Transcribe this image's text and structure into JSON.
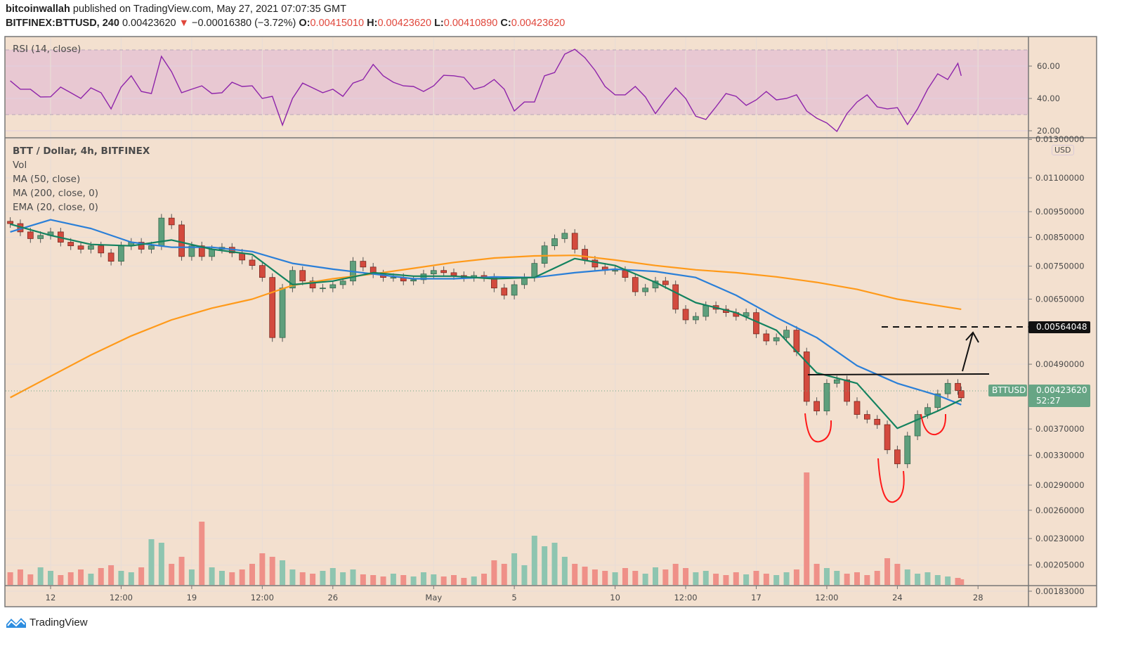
{
  "header": {
    "author": "bitcoinwallah",
    "published": "published on TradingView.com, May 27, 2021 07:07:35 GMT",
    "symbol": "BITFINEX:BTTUSD, 240",
    "last": "0.00423620",
    "change": "−0.00016380 (−3.72%)",
    "direction_icon": "triangle-down-icon",
    "o_label": "O:",
    "o": "0.00415010",
    "h_label": "H:",
    "h": "0.00423620",
    "l_label": "L:",
    "l": "0.00410890",
    "c_label": "C:",
    "c": "0.00423620"
  },
  "legend": {
    "rsi": "RSI (14, close)",
    "title": "BTT / Dollar, 4h, BITFINEX",
    "vol": "Vol",
    "ma50": "MA (50, close)",
    "ma200": "MA (200, close, 0)",
    "ema20": "EMA (20, close, 0)"
  },
  "price_axis": {
    "currency": "USD",
    "ticks": [
      "0.01300000",
      "0.01100000",
      "0.00950000",
      "0.00850000",
      "0.00750000",
      "0.00650000",
      "0.00490000",
      "0.00370000",
      "0.00330000",
      "0.00290000",
      "0.00260000",
      "0.00230000",
      "0.00205000",
      "0.00183000"
    ],
    "last_price_symbol": "BTTUSD",
    "last_price": "0.00423620",
    "countdown": "52:27",
    "target_label": "0.00564048"
  },
  "rsi_axis": {
    "ticks": [
      "20.00",
      "40.00",
      "60.00"
    ]
  },
  "time_axis": {
    "ticks": [
      {
        "label": "12",
        "date": "2021-04-12 00:00"
      },
      {
        "label": "12:00",
        "date": "2021-04-15 12:00"
      },
      {
        "label": "19",
        "date": "2021-04-19 00:00"
      },
      {
        "label": "12:00",
        "date": "2021-04-22 12:00"
      },
      {
        "label": "26",
        "date": "2021-04-26 00:00"
      },
      {
        "label": "May",
        "date": "2021-05-01 00:00"
      },
      {
        "label": "5",
        "date": "2021-05-05 00:00"
      },
      {
        "label": "10",
        "date": "2021-05-10 00:00"
      },
      {
        "label": "12:00",
        "date": "2021-05-13 12:00"
      },
      {
        "label": "17",
        "date": "2021-05-17 00:00"
      },
      {
        "label": "12:00",
        "date": "2021-05-20 12:00"
      },
      {
        "label": "24",
        "date": "2021-05-24 00:00"
      },
      {
        "label": "28",
        "date": "2021-05-28 00:00"
      }
    ]
  },
  "colors": {
    "background": "#f3e0cf",
    "up": "#5e9f7c",
    "down": "#d34a3e",
    "vol_up": "#8ec5b0",
    "vol_down": "#ef9088",
    "ma50": "#2a7fd8",
    "ma200": "#ff9a1a",
    "ema20": "#13825f",
    "rsi": "#8e24aa",
    "rsi_band": "#e8c8d2",
    "last_price": "#67a585",
    "annotation_pattern": "#ff1a1a"
  },
  "annotations": {
    "pattern": "inverse head and shoulders",
    "target_price": 0.00564048,
    "neckline_price": 0.00468
  },
  "chart_data": {
    "type": "candlestick",
    "price_scale": "log",
    "ylim": [
      0.00178,
      0.0131
    ],
    "grid": true,
    "candles_close": [
      [
        "2021-04-10 00:00",
        0.00902
      ],
      [
        "2021-04-10 12:00",
        0.0087
      ],
      [
        "2021-04-11 00:00",
        0.00845
      ],
      [
        "2021-04-11 12:00",
        0.00857
      ],
      [
        "2021-04-12 00:00",
        0.0087
      ],
      [
        "2021-04-12 12:00",
        0.00832
      ],
      [
        "2021-04-13 00:00",
        0.00819
      ],
      [
        "2021-04-13 12:00",
        0.00807
      ],
      [
        "2021-04-14 00:00",
        0.00819
      ],
      [
        "2021-04-14 12:00",
        0.00794
      ],
      [
        "2021-04-15 00:00",
        0.00766
      ],
      [
        "2021-04-15 12:00",
        0.00819
      ],
      [
        "2021-04-16 00:00",
        0.00832
      ],
      [
        "2021-04-16 12:00",
        0.00807
      ],
      [
        "2021-04-17 00:00",
        0.00819
      ],
      [
        "2021-04-17 12:00",
        0.00924
      ],
      [
        "2021-04-18 00:00",
        0.00897
      ],
      [
        "2021-04-18 12:00",
        0.00782
      ],
      [
        "2021-04-19 00:00",
        0.00819
      ],
      [
        "2021-04-19 12:00",
        0.00782
      ],
      [
        "2021-04-20 00:00",
        0.00807
      ],
      [
        "2021-04-20 12:00",
        0.00814
      ],
      [
        "2021-04-21 00:00",
        0.00794
      ],
      [
        "2021-04-21 12:00",
        0.0077
      ],
      [
        "2021-04-22 00:00",
        0.00752
      ],
      [
        "2021-04-22 12:00",
        0.00714
      ],
      [
        "2021-04-23 00:00",
        0.0055
      ],
      [
        "2021-04-23 12:00",
        0.00682
      ],
      [
        "2021-04-24 00:00",
        0.00736
      ],
      [
        "2021-04-24 12:00",
        0.00703
      ],
      [
        "2021-04-25 00:00",
        0.00682
      ],
      [
        "2021-04-25 12:00",
        0.00682
      ],
      [
        "2021-04-26 00:00",
        0.00692
      ],
      [
        "2021-04-26 12:00",
        0.00703
      ],
      [
        "2021-04-27 00:00",
        0.00766
      ],
      [
        "2021-04-27 12:00",
        0.00747
      ],
      [
        "2021-04-28 00:00",
        0.00725
      ],
      [
        "2021-04-28 12:00",
        0.00714
      ],
      [
        "2021-04-29 00:00",
        0.00714
      ],
      [
        "2021-04-29 12:00",
        0.00703
      ],
      [
        "2021-04-30 00:00",
        0.00707
      ],
      [
        "2021-04-30 12:00",
        0.00725
      ],
      [
        "2021-05-01 00:00",
        0.00736
      ],
      [
        "2021-05-01 12:00",
        0.00729
      ],
      [
        "2021-05-02 00:00",
        0.0072
      ],
      [
        "2021-05-02 12:00",
        0.00714
      ],
      [
        "2021-05-03 00:00",
        0.0072
      ],
      [
        "2021-05-03 12:00",
        0.00714
      ],
      [
        "2021-05-04 00:00",
        0.00682
      ],
      [
        "2021-05-04 12:00",
        0.00661
      ],
      [
        "2021-05-05 00:00",
        0.00692
      ],
      [
        "2021-05-05 12:00",
        0.00714
      ],
      [
        "2021-05-06 00:00",
        0.00759
      ],
      [
        "2021-05-06 12:00",
        0.00819
      ],
      [
        "2021-05-07 00:00",
        0.00845
      ],
      [
        "2021-05-07 12:00",
        0.00865
      ],
      [
        "2021-05-08 00:00",
        0.00807
      ],
      [
        "2021-05-08 12:00",
        0.0077
      ],
      [
        "2021-05-09 00:00",
        0.00747
      ],
      [
        "2021-05-09 12:00",
        0.00736
      ],
      [
        "2021-05-10 00:00",
        0.00736
      ],
      [
        "2021-05-10 12:00",
        0.00714
      ],
      [
        "2021-05-11 00:00",
        0.00671
      ],
      [
        "2021-05-11 12:00",
        0.00682
      ],
      [
        "2021-05-12 00:00",
        0.00703
      ],
      [
        "2021-05-12 12:00",
        0.00692
      ],
      [
        "2021-05-13 00:00",
        0.00622
      ],
      [
        "2021-05-13 12:00",
        0.00594
      ],
      [
        "2021-05-14 00:00",
        0.00603
      ],
      [
        "2021-05-14 12:00",
        0.00632
      ],
      [
        "2021-05-15 00:00",
        0.00622
      ],
      [
        "2021-05-15 12:00",
        0.00613
      ],
      [
        "2021-05-16 00:00",
        0.00603
      ],
      [
        "2021-05-16 12:00",
        0.00613
      ],
      [
        "2021-05-17 00:00",
        0.00559
      ],
      [
        "2021-05-17 12:00",
        0.00542
      ],
      [
        "2021-05-18 00:00",
        0.0055
      ],
      [
        "2021-05-18 12:00",
        0.00568
      ],
      [
        "2021-05-19 00:00",
        0.00517
      ],
      [
        "2021-05-19 12:00",
        0.00417
      ],
      [
        "2021-05-20 00:00",
        0.004
      ],
      [
        "2021-05-20 12:00",
        0.00451
      ],
      [
        "2021-05-21 00:00",
        0.00458
      ],
      [
        "2021-05-21 12:00",
        0.00417
      ],
      [
        "2021-05-22 00:00",
        0.00394
      ],
      [
        "2021-05-22 12:00",
        0.00386
      ],
      [
        "2021-05-23 00:00",
        0.00377
      ],
      [
        "2021-05-23 12:00",
        0.00338
      ],
      [
        "2021-05-24 00:00",
        0.00318
      ],
      [
        "2021-05-24 12:00",
        0.00359
      ],
      [
        "2021-05-25 00:00",
        0.00394
      ],
      [
        "2021-05-25 12:00",
        0.00406
      ],
      [
        "2021-05-26 00:00",
        0.00431
      ],
      [
        "2021-05-26 12:00",
        0.00451
      ],
      [
        "2021-05-27 00:00",
        0.00437
      ],
      [
        "2021-05-27 04:00",
        0.0042362
      ]
    ],
    "volume_relative": [
      18,
      22,
      15,
      25,
      20,
      14,
      18,
      22,
      16,
      24,
      28,
      20,
      18,
      25,
      65,
      60,
      30,
      40,
      22,
      90,
      25,
      20,
      18,
      22,
      30,
      45,
      40,
      35,
      22,
      18,
      16,
      20,
      24,
      18,
      22,
      15,
      14,
      12,
      16,
      14,
      12,
      18,
      15,
      12,
      14,
      10,
      12,
      16,
      35,
      30,
      45,
      28,
      70,
      55,
      60,
      40,
      30,
      26,
      22,
      20,
      18,
      24,
      20,
      16,
      25,
      22,
      30,
      24,
      18,
      20,
      16,
      14,
      18,
      15,
      20,
      16,
      14,
      18,
      22,
      160,
      30,
      24,
      20,
      16,
      18,
      14,
      20,
      38,
      30,
      22,
      16,
      18,
      14,
      12,
      10,
      8
    ],
    "rsi": [
      50.9,
      45.7,
      45.7,
      40.9,
      41,
      47,
      43.5,
      40,
      46.5,
      43.5,
      33.5,
      47,
      54,
      44.3,
      43,
      66,
      56.5,
      43.5,
      45.7,
      47.8,
      43,
      43.5,
      50,
      47.4,
      47.8,
      40,
      41.3,
      23.5,
      40,
      49.5,
      46.5,
      43.5,
      45.7,
      41.3,
      49.5,
      51.7,
      61,
      54,
      50,
      47.8,
      47.4,
      44.3,
      47.8,
      54.3,
      54,
      53,
      45.7,
      47.4,
      51.7,
      45.7,
      32.2,
      37.8,
      37.8,
      54,
      56,
      67.4,
      70.4,
      65.2,
      57.4,
      47.4,
      42.2,
      42.2,
      47.4,
      41,
      30.6,
      39.1,
      46.5,
      40,
      29,
      27,
      34.8,
      43,
      41.3,
      35.7,
      39.1,
      44.3,
      39.1,
      40,
      42.2,
      32.2,
      27.8,
      24.8,
      19.6,
      30.6,
      37.8,
      42.2,
      34.8,
      33.5,
      34.3,
      23.9,
      33.5,
      45.7,
      55.2,
      51.7,
      61.7,
      54
    ],
    "rsi_levels": {
      "upper": 70,
      "lower": 30
    },
    "ma50": [
      [
        "2021-04-10 00:00",
        0.0087
      ],
      [
        "2021-04-12 00:00",
        0.00917
      ],
      [
        "2021-04-14 00:00",
        0.00883
      ],
      [
        "2021-04-16 00:00",
        0.00832
      ],
      [
        "2021-04-18 00:00",
        0.00814
      ],
      [
        "2021-04-20 00:00",
        0.00814
      ],
      [
        "2021-04-22 00:00",
        0.00799
      ],
      [
        "2021-04-24 00:00",
        0.00759
      ],
      [
        "2021-04-26 00:00",
        0.0074
      ],
      [
        "2021-04-28 00:00",
        0.00725
      ],
      [
        "2021-04-30 00:00",
        0.0071
      ],
      [
        "2021-05-02 00:00",
        0.0071
      ],
      [
        "2021-05-04 00:00",
        0.00716
      ],
      [
        "2021-05-06 00:00",
        0.00714
      ],
      [
        "2021-05-08 00:00",
        0.00729
      ],
      [
        "2021-05-10 00:00",
        0.0074
      ],
      [
        "2021-05-12 00:00",
        0.00733
      ],
      [
        "2021-05-14 00:00",
        0.00714
      ],
      [
        "2021-05-16 00:00",
        0.00661
      ],
      [
        "2021-05-18 00:00",
        0.006
      ],
      [
        "2021-05-20 00:00",
        0.0055
      ],
      [
        "2021-05-22 00:00",
        0.00487
      ],
      [
        "2021-05-24 00:00",
        0.00451
      ],
      [
        "2021-05-26 00:00",
        0.00428
      ],
      [
        "2021-05-27 04:00",
        0.00411
      ]
    ],
    "ma200": [
      [
        "2021-04-10 00:00",
        0.00424
      ],
      [
        "2021-04-12 00:00",
        0.00465
      ],
      [
        "2021-04-14 00:00",
        0.0051
      ],
      [
        "2021-04-16 00:00",
        0.00554
      ],
      [
        "2021-04-18 00:00",
        0.00594
      ],
      [
        "2021-04-20 00:00",
        0.00625
      ],
      [
        "2021-04-22 00:00",
        0.0065
      ],
      [
        "2021-04-24 00:00",
        0.0069
      ],
      [
        "2021-04-26 00:00",
        0.0071
      ],
      [
        "2021-04-28 00:00",
        0.00725
      ],
      [
        "2021-04-30 00:00",
        0.00743
      ],
      [
        "2021-05-02 00:00",
        0.00762
      ],
      [
        "2021-05-04 00:00",
        0.00777
      ],
      [
        "2021-05-06 00:00",
        0.00784
      ],
      [
        "2021-05-08 00:00",
        0.00786
      ],
      [
        "2021-05-10 00:00",
        0.0077
      ],
      [
        "2021-05-12 00:00",
        0.00752
      ],
      [
        "2021-05-14 00:00",
        0.00738
      ],
      [
        "2021-05-16 00:00",
        0.00729
      ],
      [
        "2021-05-18 00:00",
        0.00716
      ],
      [
        "2021-05-20 00:00",
        0.00699
      ],
      [
        "2021-05-22 00:00",
        0.00678
      ],
      [
        "2021-05-24 00:00",
        0.0065
      ],
      [
        "2021-05-26 00:00",
        0.00632
      ],
      [
        "2021-05-27 04:00",
        0.00622
      ]
    ],
    "ema20": [
      [
        "2021-04-10 00:00",
        0.009
      ],
      [
        "2021-04-12 00:00",
        0.00857
      ],
      [
        "2021-04-14 00:00",
        0.00824
      ],
      [
        "2021-04-16 00:00",
        0.00819
      ],
      [
        "2021-04-18 00:00",
        0.0084
      ],
      [
        "2021-04-20 00:00",
        0.00807
      ],
      [
        "2021-04-22 00:00",
        0.00789
      ],
      [
        "2021-04-24 00:00",
        0.00692
      ],
      [
        "2021-04-26 00:00",
        0.00703
      ],
      [
        "2021-04-28 00:00",
        0.00729
      ],
      [
        "2021-04-30 00:00",
        0.00718
      ],
      [
        "2021-05-02 00:00",
        0.00718
      ],
      [
        "2021-05-04 00:00",
        0.0071
      ],
      [
        "2021-05-06 00:00",
        0.00714
      ],
      [
        "2021-05-08 00:00",
        0.00775
      ],
      [
        "2021-05-10 00:00",
        0.00752
      ],
      [
        "2021-05-12 00:00",
        0.00699
      ],
      [
        "2021-05-14 00:00",
        0.0064
      ],
      [
        "2021-05-16 00:00",
        0.00613
      ],
      [
        "2021-05-18 00:00",
        0.00568
      ],
      [
        "2021-05-20 00:00",
        0.00472
      ],
      [
        "2021-05-22 00:00",
        0.00451
      ],
      [
        "2021-05-24 00:00",
        0.00371
      ],
      [
        "2021-05-26 00:00",
        0.004
      ],
      [
        "2021-05-27 04:00",
        0.0042
      ]
    ]
  },
  "watermark": {
    "brand": "TradingView",
    "icon": "tradingview-logo-icon"
  }
}
